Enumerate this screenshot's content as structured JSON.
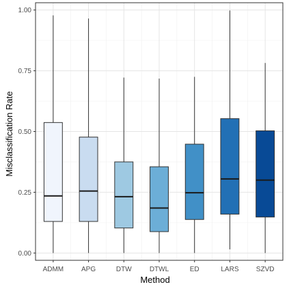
{
  "chart_data": {
    "type": "boxplot",
    "title": "",
    "xlabel": "Method",
    "ylabel": "Misclassification Rate",
    "ylim": [
      -0.03,
      1.03
    ],
    "yticks": [
      0.0,
      0.25,
      0.5,
      0.75,
      1.0
    ],
    "ytick_labels": [
      "0.00",
      "0.25",
      "0.50",
      "0.75",
      "1.00"
    ],
    "grid": true,
    "legend": "none",
    "categories": [
      "ADMM",
      "APG",
      "DTW",
      "DTWL",
      "ED",
      "LARS",
      "SZVD"
    ],
    "boxes": [
      {
        "category": "ADMM",
        "min": 0.0,
        "q1": 0.13,
        "median": 0.235,
        "q3": 0.537,
        "max": 0.978,
        "fill": "#f0f5fd"
      },
      {
        "category": "APG",
        "min": 0.0,
        "q1": 0.13,
        "median": 0.255,
        "q3": 0.477,
        "max": 0.965,
        "fill": "#c9dcf0"
      },
      {
        "category": "DTW",
        "min": 0.0,
        "q1": 0.103,
        "median": 0.232,
        "q3": 0.375,
        "max": 0.722,
        "fill": "#9ec9e2"
      },
      {
        "category": "DTWL",
        "min": 0.0,
        "q1": 0.088,
        "median": 0.185,
        "q3": 0.355,
        "max": 0.718,
        "fill": "#6caed7"
      },
      {
        "category": "ED",
        "min": 0.0,
        "q1": 0.138,
        "median": 0.248,
        "q3": 0.448,
        "max": 0.725,
        "fill": "#4190c7"
      },
      {
        "category": "LARS",
        "min": 0.015,
        "q1": 0.16,
        "median": 0.305,
        "q3": 0.553,
        "max": 0.998,
        "fill": "#2270b5"
      },
      {
        "category": "SZVD",
        "min": 0.0,
        "q1": 0.148,
        "median": 0.3,
        "q3": 0.503,
        "max": 0.782,
        "fill": "#084a96"
      }
    ]
  }
}
